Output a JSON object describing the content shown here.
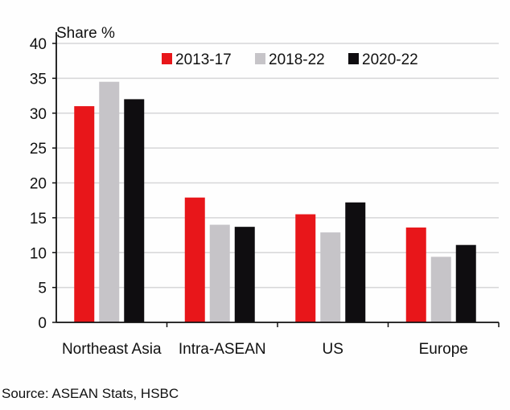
{
  "chart_data": {
    "type": "bar",
    "ylabel": "Share %",
    "ylim": [
      0,
      40
    ],
    "yticks": [
      0,
      5,
      10,
      15,
      20,
      25,
      30,
      35,
      40
    ],
    "grid": true,
    "legend_position": "top",
    "categories": [
      "Northeast Asia",
      "Intra-ASEAN",
      "US",
      "Europe"
    ],
    "series": [
      {
        "name": "2013-17",
        "color": "#e8161a",
        "values": [
          31.0,
          17.9,
          15.5,
          13.6
        ]
      },
      {
        "name": "2018-22",
        "color": "#c6c4c8",
        "values": [
          34.5,
          14.0,
          12.9,
          9.4
        ]
      },
      {
        "name": "2020-22",
        "color": "#0f0d10",
        "values": [
          32.0,
          13.7,
          17.2,
          11.1
        ]
      }
    ]
  },
  "source": "Source: ASEAN Stats, HSBC"
}
